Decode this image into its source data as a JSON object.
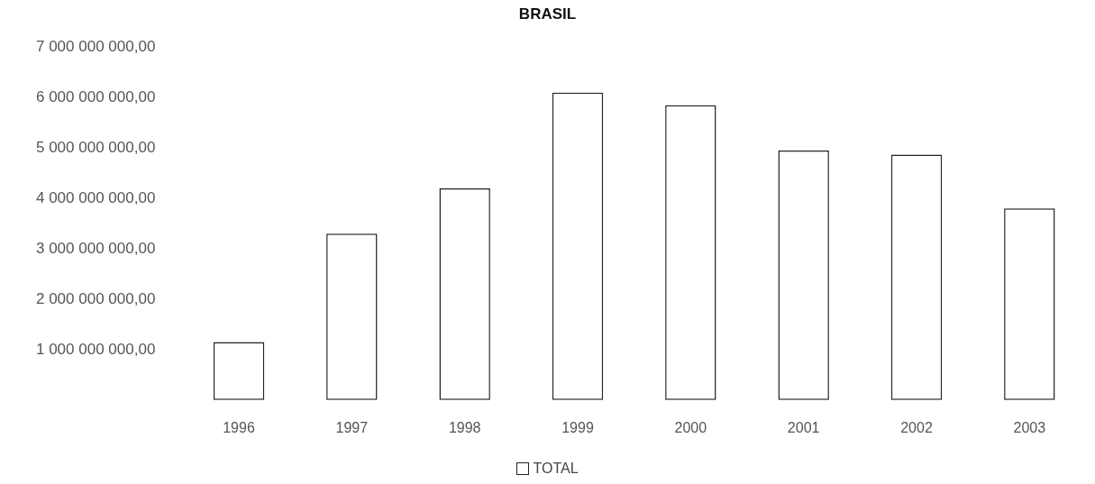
{
  "chart_data": {
    "type": "bar",
    "title": "BRASIL",
    "categories": [
      "1996",
      "1997",
      "1998",
      "1999",
      "2000",
      "2001",
      "2002",
      "2003"
    ],
    "series": [
      {
        "name": "TOTAL",
        "color": "#ffffff",
        "values": [
          1150000000,
          3300000000,
          4200000000,
          6100000000,
          5850000000,
          4950000000,
          4870000000,
          3800000000
        ]
      }
    ],
    "ylim": [
      0,
      7000000000
    ],
    "yticks": [
      {
        "value": 1000000000,
        "label": "1 000 000 000,00"
      },
      {
        "value": 2000000000,
        "label": "2 000 000 000,00"
      },
      {
        "value": 3000000000,
        "label": "3 000 000 000,00"
      },
      {
        "value": 4000000000,
        "label": "4 000 000 000,00"
      },
      {
        "value": 5000000000,
        "label": "5 000 000 000,00"
      },
      {
        "value": 6000000000,
        "label": "6 000 000 000,00"
      },
      {
        "value": 7000000000,
        "label": "7 000 000 000,00"
      }
    ],
    "grid": false,
    "legend": "bottom"
  }
}
